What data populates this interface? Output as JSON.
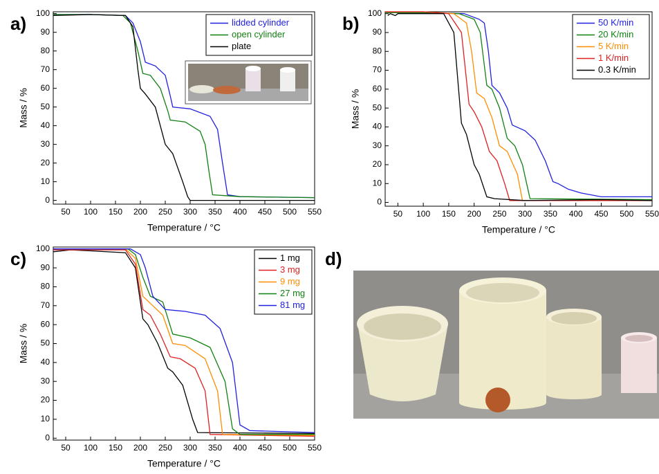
{
  "chart_data": [
    {
      "type": "line",
      "label": "a)",
      "xlabel": "Temperature / °C",
      "ylabel": "Mass / %",
      "xlim": [
        25,
        550
      ],
      "ylim": [
        -2,
        101
      ],
      "xticks": [
        50,
        100,
        150,
        200,
        250,
        300,
        350,
        400,
        450,
        500,
        550
      ],
      "yticks": [
        0,
        10,
        20,
        30,
        40,
        50,
        60,
        70,
        80,
        90,
        100
      ],
      "legend": "upper right",
      "series": [
        {
          "name": "lidded cylinder",
          "color": "#2020e0",
          "x": [
            25,
            100,
            170,
            185,
            200,
            210,
            230,
            250,
            260,
            265,
            300,
            340,
            355,
            365,
            375,
            400,
            550
          ],
          "values": [
            99.5,
            99.5,
            99,
            95,
            85,
            74,
            72,
            67,
            56,
            50,
            49,
            45,
            38,
            20,
            3,
            2,
            1.5
          ]
        },
        {
          "name": "open cylinder",
          "color": "#108010",
          "x": [
            25,
            100,
            165,
            180,
            195,
            205,
            220,
            240,
            255,
            260,
            290,
            320,
            330,
            338,
            345,
            400,
            550
          ],
          "values": [
            99.5,
            99.5,
            99,
            95,
            80,
            68,
            67,
            60,
            48,
            43,
            42,
            37,
            30,
            15,
            3,
            2,
            1.5
          ]
        },
        {
          "name": "plate",
          "color": "#000000",
          "x": [
            25,
            100,
            170,
            185,
            195,
            200,
            210,
            230,
            245,
            250,
            265,
            285,
            295,
            300,
            550
          ],
          "values": [
            99,
            99.5,
            99,
            93,
            70,
            60,
            57,
            50,
            35,
            30,
            25,
            10,
            2,
            0,
            0
          ]
        }
      ]
    },
    {
      "type": "line",
      "label": "b)",
      "xlabel": "Temperature / °C",
      "ylabel": "Mass / %",
      "xlim": [
        25,
        550
      ],
      "ylim": [
        -2,
        101
      ],
      "xticks": [
        50,
        100,
        150,
        200,
        250,
        300,
        350,
        400,
        450,
        500,
        550
      ],
      "yticks": [
        0,
        10,
        20,
        30,
        40,
        50,
        60,
        70,
        80,
        90,
        100
      ],
      "legend": "upper right",
      "series": [
        {
          "name": "50 K/min",
          "color": "#2020e0",
          "x": [
            25,
            100,
            180,
            210,
            220,
            228,
            235,
            250,
            265,
            275,
            300,
            320,
            340,
            355,
            365,
            385,
            410,
            450,
            550
          ],
          "values": [
            100.5,
            100.5,
            100,
            97,
            95,
            80,
            62,
            58,
            50,
            41,
            38,
            33,
            22,
            11,
            10,
            7,
            5,
            3,
            3
          ]
        },
        {
          "name": "20 K/min",
          "color": "#108010",
          "x": [
            25,
            100,
            170,
            200,
            212,
            225,
            235,
            250,
            265,
            280,
            295,
            310,
            550
          ],
          "values": [
            100.5,
            100.5,
            100,
            97,
            90,
            62,
            60,
            50,
            34,
            30,
            20,
            2,
            1.5
          ]
        },
        {
          "name": "5 K/min",
          "color": "#ff8c00",
          "x": [
            25,
            100,
            160,
            185,
            195,
            205,
            220,
            235,
            250,
            265,
            285,
            295,
            550
          ],
          "values": [
            101,
            101,
            100,
            95,
            80,
            58,
            55,
            45,
            30,
            27,
            15,
            1,
            1
          ]
        },
        {
          "name": "1 K/min",
          "color": "#e02020",
          "x": [
            25,
            100,
            150,
            175,
            190,
            200,
            215,
            230,
            245,
            260,
            270,
            550
          ],
          "values": [
            101,
            101,
            100,
            90,
            52,
            48,
            40,
            27,
            22,
            10,
            1,
            1
          ]
        },
        {
          "name": "0.3 K/min",
          "color": "#000000",
          "x": [
            30,
            35,
            40,
            45,
            50,
            55,
            100,
            140,
            160,
            175,
            185,
            200,
            210,
            225,
            240,
            300,
            450,
            550
          ],
          "values": [
            99,
            100,
            99.5,
            99,
            100,
            100,
            100,
            100,
            90,
            42,
            36,
            20,
            15,
            3,
            2,
            1,
            1.5,
            1
          ]
        }
      ]
    },
    {
      "type": "line",
      "label": "c)",
      "xlabel": "Temperature / °C",
      "ylabel": "Mass / %",
      "xlim": [
        25,
        550
      ],
      "ylim": [
        -1,
        101
      ],
      "xticks": [
        50,
        100,
        150,
        200,
        250,
        300,
        350,
        400,
        450,
        500,
        550
      ],
      "yticks": [
        0,
        10,
        20,
        30,
        40,
        50,
        60,
        70,
        80,
        90,
        100
      ],
      "legend": "upper right",
      "series": [
        {
          "name": "1 mg",
          "color": "#000000",
          "x": [
            25,
            60,
            100,
            170,
            190,
            205,
            215,
            235,
            255,
            265,
            285,
            305,
            315,
            550
          ],
          "values": [
            98.5,
            99.5,
            99,
            98,
            90,
            63,
            60,
            50,
            37,
            35,
            28,
            10,
            3,
            2.5
          ]
        },
        {
          "name": "3 mg",
          "color": "#e02020",
          "x": [
            25,
            100,
            170,
            190,
            205,
            220,
            240,
            260,
            280,
            310,
            330,
            340,
            550
          ],
          "values": [
            99.5,
            99.5,
            99.5,
            92,
            68,
            65,
            55,
            43,
            42,
            37,
            25,
            2,
            1
          ]
        },
        {
          "name": "9 mg",
          "color": "#ff8c00",
          "x": [
            25,
            100,
            170,
            190,
            205,
            225,
            245,
            265,
            290,
            330,
            355,
            365,
            550
          ],
          "values": [
            100,
            100,
            100,
            95,
            75,
            70,
            65,
            50,
            49,
            42,
            25,
            2,
            1.5
          ]
        },
        {
          "name": "27 mg",
          "color": "#108010",
          "x": [
            25,
            100,
            175,
            190,
            205,
            220,
            245,
            265,
            300,
            340,
            370,
            385,
            400,
            550
          ],
          "values": [
            100,
            100,
            100,
            97,
            85,
            75,
            72,
            55,
            53,
            48,
            30,
            5,
            2,
            2
          ]
        },
        {
          "name": "81 mg",
          "color": "#2020e0",
          "x": [
            25,
            100,
            180,
            200,
            210,
            225,
            250,
            290,
            330,
            360,
            385,
            400,
            420,
            550
          ],
          "values": [
            100,
            100,
            100,
            97,
            90,
            75,
            68,
            67,
            65,
            58,
            40,
            7,
            4,
            3
          ]
        }
      ]
    }
  ],
  "photo": {
    "label": "d)"
  }
}
